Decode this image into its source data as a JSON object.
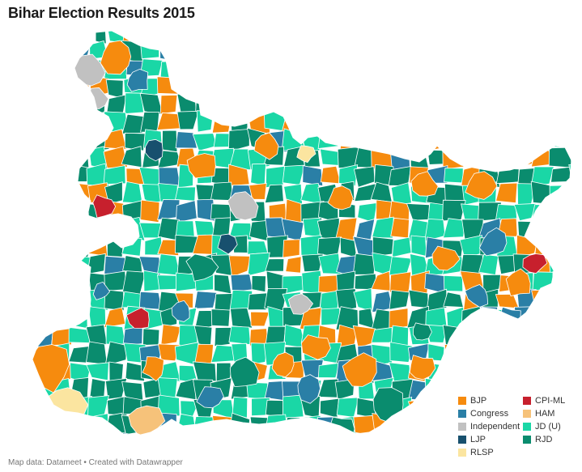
{
  "title": "Bihar Election Results 2015",
  "source": "Map data: Datameet • Created with Datawrapper",
  "colors": {
    "BJP": "#f68b0e",
    "CPI-ML": "#c7202d",
    "Congress": "#2a7fa6",
    "HAM": "#f6c27a",
    "Independent": "#c1c1c1",
    "JD (U)": "#1ad7a6",
    "LJP": "#18506e",
    "RJD": "#0a8c6e",
    "RLSP": "#fbe5a0",
    "border": "#ffffff"
  },
  "legend": [
    {
      "label": "BJP",
      "key": "BJP"
    },
    {
      "label": "CPI-ML",
      "key": "CPI-ML"
    },
    {
      "label": "Congress",
      "key": "Congress"
    },
    {
      "label": "HAM",
      "key": "HAM"
    },
    {
      "label": "Independent",
      "key": "Independent"
    },
    {
      "label": "JD (U)",
      "key": "JD (U)"
    },
    {
      "label": "LJP",
      "key": "LJP"
    },
    {
      "label": "RJD",
      "key": "RJD"
    },
    {
      "label": "RLSP",
      "key": "RLSP"
    }
  ]
}
